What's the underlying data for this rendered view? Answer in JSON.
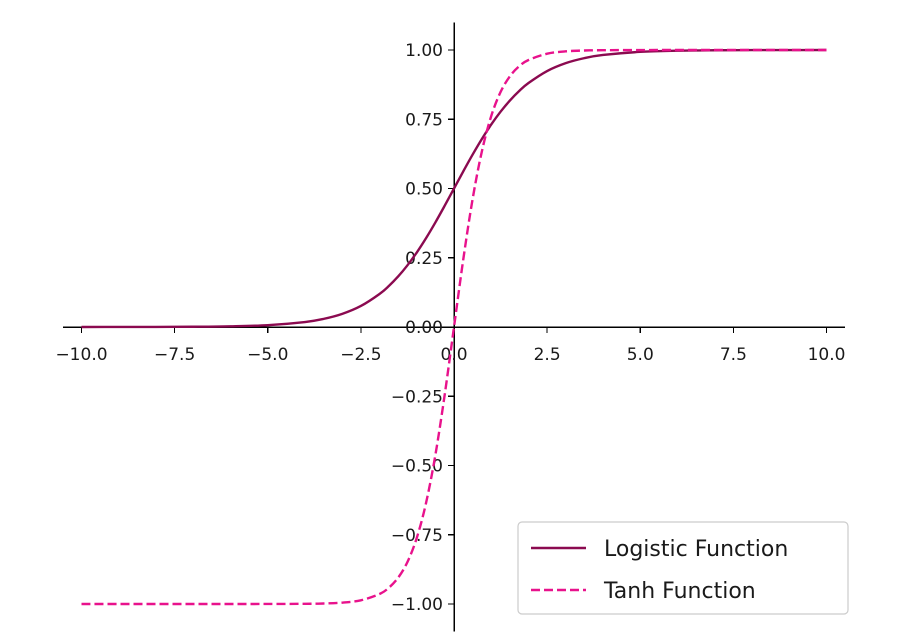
{
  "chart_data": {
    "type": "line",
    "title": "",
    "xlabel": "",
    "ylabel": "",
    "xlim": [
      -10.5,
      10.5
    ],
    "ylim": [
      -1.1,
      1.1
    ],
    "grid": false,
    "legend_position": "lower-right",
    "x_ticks": [
      -10.0,
      -7.5,
      -5.0,
      -2.5,
      0.0,
      2.5,
      5.0,
      7.5,
      10.0
    ],
    "x_tick_labels": [
      "−10.0",
      "−7.5",
      "−5.0",
      "−2.5",
      "0.0",
      "2.5",
      "5.0",
      "7.5",
      "10.0"
    ],
    "y_ticks": [
      -1.0,
      -0.75,
      -0.5,
      -0.25,
      0.0,
      0.25,
      0.5,
      0.75,
      1.0
    ],
    "y_tick_labels": [
      "−1.00",
      "−0.75",
      "−0.50",
      "−0.25",
      "0.00",
      "0.25",
      "0.50",
      "0.75",
      "1.00"
    ],
    "x": [
      -10.0,
      -9.0,
      -8.0,
      -7.0,
      -6.0,
      -5.0,
      -4.0,
      -3.5,
      -3.0,
      -2.5,
      -2.0,
      -1.75,
      -1.5,
      -1.25,
      -1.0,
      -0.75,
      -0.5,
      -0.25,
      0.0,
      0.25,
      0.5,
      0.75,
      1.0,
      1.25,
      1.5,
      1.75,
      2.0,
      2.5,
      3.0,
      3.5,
      4.0,
      5.0,
      6.0,
      7.0,
      8.0,
      9.0,
      10.0
    ],
    "series": [
      {
        "name": "Logistic Function",
        "color": "#8b0a50",
        "style": "solid",
        "values": [
          0.0,
          0.0001,
          0.0003,
          0.0009,
          0.0025,
          0.0067,
          0.018,
          0.0293,
          0.0474,
          0.0759,
          0.1192,
          0.148,
          0.1824,
          0.2227,
          0.2689,
          0.3208,
          0.3775,
          0.4378,
          0.5,
          0.5622,
          0.6225,
          0.6792,
          0.7311,
          0.7773,
          0.8176,
          0.852,
          0.8808,
          0.9241,
          0.9526,
          0.9707,
          0.982,
          0.9933,
          0.9975,
          0.9991,
          0.9997,
          0.9999,
          1.0
        ]
      },
      {
        "name": "Tanh Function",
        "color": "#e8128c",
        "style": "dashed",
        "values": [
          -1.0,
          -1.0,
          -1.0,
          -1.0,
          -1.0,
          -0.9999,
          -0.9993,
          -0.9982,
          -0.9951,
          -0.9866,
          -0.964,
          -0.9414,
          -0.9051,
          -0.8483,
          -0.7616,
          -0.6351,
          -0.4621,
          -0.2449,
          0.0,
          0.2449,
          0.4621,
          0.6351,
          0.7616,
          0.8483,
          0.9051,
          0.9414,
          0.964,
          0.9866,
          0.9951,
          0.9982,
          0.9993,
          0.9999,
          1.0,
          1.0,
          1.0,
          1.0,
          1.0
        ]
      }
    ]
  }
}
